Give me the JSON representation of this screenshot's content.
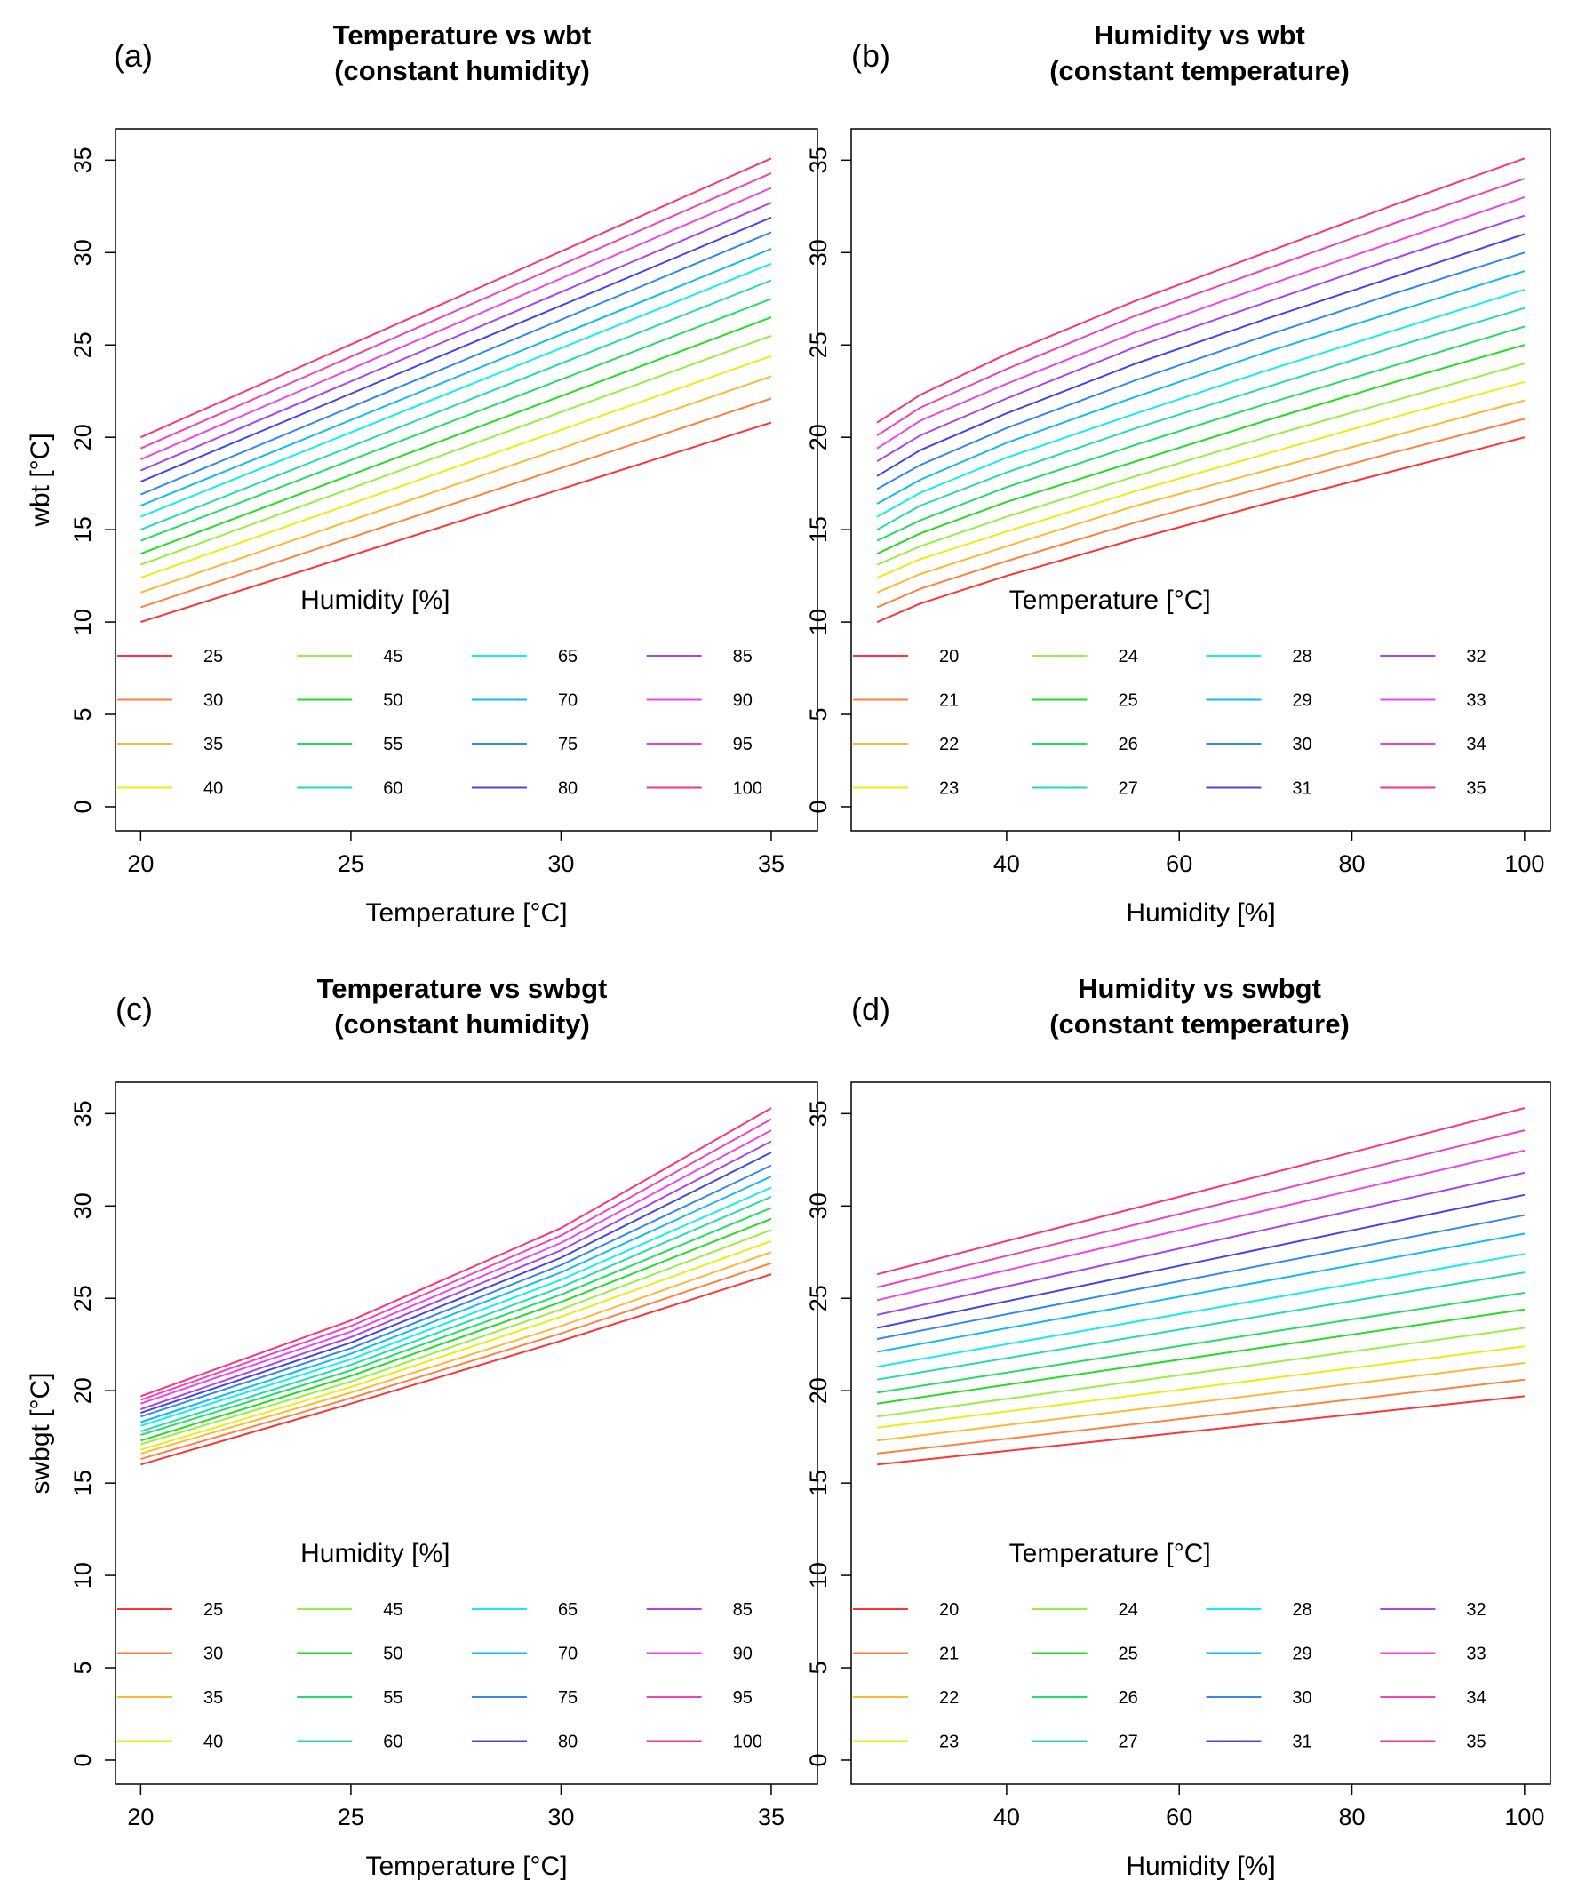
{
  "chart_data": [
    {
      "type": "line",
      "panel_tag": "(a)",
      "title_lines": [
        "Temperature vs wbt",
        "(constant humidity)"
      ],
      "xlabel": "Temperature [°C]",
      "ylabel": "wbt [°C]",
      "xlim": [
        19.4,
        36.1
      ],
      "ylim": [
        -1.3,
        36.7
      ],
      "xticks": [
        20,
        25,
        30,
        35
      ],
      "yticks": [
        0,
        5,
        10,
        15,
        20,
        25,
        30,
        35
      ],
      "x": [
        20,
        35
      ],
      "legend_title": "Humidity [%]",
      "series": [
        {
          "name": "25",
          "color": "#ff3333",
          "values": [
            10.0,
            20.8
          ]
        },
        {
          "name": "30",
          "color": "#ff8040",
          "values": [
            10.8,
            22.1
          ]
        },
        {
          "name": "35",
          "color": "#ffb833",
          "values": [
            11.6,
            23.3
          ]
        },
        {
          "name": "40",
          "color": "#e8ee10",
          "values": [
            12.4,
            24.4
          ]
        },
        {
          "name": "45",
          "color": "#99ee44",
          "values": [
            13.1,
            25.5
          ]
        },
        {
          "name": "50",
          "color": "#22dd22",
          "values": [
            13.7,
            26.5
          ]
        },
        {
          "name": "55",
          "color": "#22dd66",
          "values": [
            14.4,
            27.5
          ]
        },
        {
          "name": "60",
          "color": "#22ddaa",
          "values": [
            15.0,
            28.5
          ]
        },
        {
          "name": "65",
          "color": "#11eeee",
          "values": [
            15.7,
            29.4
          ]
        },
        {
          "name": "70",
          "color": "#11bbee",
          "values": [
            16.3,
            30.2
          ]
        },
        {
          "name": "75",
          "color": "#3388ee",
          "values": [
            16.9,
            31.1
          ]
        },
        {
          "name": "80",
          "color": "#4444ee",
          "values": [
            17.6,
            31.9
          ]
        },
        {
          "name": "85",
          "color": "#aa44ee",
          "values": [
            18.2,
            32.7
          ]
        },
        {
          "name": "90",
          "color": "#ee44ee",
          "values": [
            18.8,
            33.5
          ]
        },
        {
          "name": "95",
          "color": "#ee44bb",
          "values": [
            19.4,
            34.3
          ]
        },
        {
          "name": "100",
          "color": "#ff3377",
          "values": [
            20.0,
            35.1
          ]
        }
      ]
    },
    {
      "type": "line",
      "panel_tag": "(b)",
      "title_lines": [
        "Humidity vs wbt",
        "(constant temperature)"
      ],
      "xlabel": "Humidity [%]",
      "ylabel": "",
      "xlim": [
        22,
        103
      ],
      "ylim": [
        -1.3,
        36.7
      ],
      "xticks": [
        40,
        60,
        80,
        100
      ],
      "yticks": [
        0,
        5,
        10,
        15,
        20,
        25,
        30,
        35
      ],
      "x": [
        25,
        30,
        40,
        55,
        70,
        85,
        100
      ],
      "legend_title": "Temperature [°C]",
      "series": [
        {
          "name": "20",
          "color": "#ff3333",
          "values": [
            10.0,
            11.0,
            12.5,
            14.5,
            16.4,
            18.2,
            20.0
          ]
        },
        {
          "name": "21",
          "color": "#ff8040",
          "values": [
            10.8,
            11.8,
            13.3,
            15.4,
            17.3,
            19.2,
            21.0
          ]
        },
        {
          "name": "22",
          "color": "#ffb833",
          "values": [
            11.6,
            12.6,
            14.1,
            16.3,
            18.2,
            20.1,
            22.0
          ]
        },
        {
          "name": "23",
          "color": "#e8ee10",
          "values": [
            12.4,
            13.4,
            14.9,
            17.1,
            19.1,
            21.1,
            23.0
          ]
        },
        {
          "name": "24",
          "color": "#99ee44",
          "values": [
            13.1,
            14.1,
            15.7,
            17.9,
            20.0,
            22.0,
            24.0
          ]
        },
        {
          "name": "25",
          "color": "#22dd22",
          "values": [
            13.7,
            14.8,
            16.5,
            18.7,
            20.9,
            23.0,
            25.0
          ]
        },
        {
          "name": "26",
          "color": "#22dd66",
          "values": [
            14.4,
            15.5,
            17.3,
            19.6,
            21.8,
            23.9,
            26.0
          ]
        },
        {
          "name": "27",
          "color": "#22ddaa",
          "values": [
            15.0,
            16.3,
            18.1,
            20.5,
            22.7,
            24.9,
            27.0
          ]
        },
        {
          "name": "28",
          "color": "#11eeee",
          "values": [
            15.7,
            17.0,
            18.9,
            21.3,
            23.6,
            25.8,
            28.0
          ]
        },
        {
          "name": "29",
          "color": "#11bbee",
          "values": [
            16.4,
            17.7,
            19.7,
            22.2,
            24.6,
            26.8,
            29.0
          ]
        },
        {
          "name": "30",
          "color": "#3388ee",
          "values": [
            17.2,
            18.5,
            20.5,
            23.1,
            25.5,
            27.8,
            30.0
          ]
        },
        {
          "name": "31",
          "color": "#4444ee",
          "values": [
            17.9,
            19.3,
            21.3,
            24.0,
            26.4,
            28.7,
            31.0
          ]
        },
        {
          "name": "32",
          "color": "#aa44ee",
          "values": [
            18.7,
            20.1,
            22.1,
            24.9,
            27.3,
            29.7,
            32.0
          ]
        },
        {
          "name": "33",
          "color": "#ee44ee",
          "values": [
            19.4,
            20.9,
            22.9,
            25.7,
            28.2,
            30.6,
            33.0
          ]
        },
        {
          "name": "34",
          "color": "#ee44bb",
          "values": [
            20.1,
            21.6,
            23.7,
            26.6,
            29.1,
            31.6,
            34.0
          ]
        },
        {
          "name": "35",
          "color": "#ff3377",
          "values": [
            20.8,
            22.3,
            24.5,
            27.4,
            30.0,
            32.6,
            35.1
          ]
        }
      ]
    },
    {
      "type": "line",
      "panel_tag": "(c)",
      "title_lines": [
        "Temperature vs swbgt",
        "(constant humidity)"
      ],
      "xlabel": "Temperature [°C]",
      "ylabel": "swbgt [°C]",
      "xlim": [
        19.4,
        36.1
      ],
      "ylim": [
        -1.3,
        36.7
      ],
      "xticks": [
        20,
        25,
        30,
        35
      ],
      "yticks": [
        0,
        5,
        10,
        15,
        20,
        25,
        30,
        35
      ],
      "x": [
        20,
        25,
        30,
        35
      ],
      "legend_title": "Humidity [%]",
      "series": [
        {
          "name": "25",
          "color": "#ff3333",
          "values": [
            16.0,
            19.3,
            22.7,
            26.3
          ]
        },
        {
          "name": "30",
          "color": "#ff8040",
          "values": [
            16.3,
            19.6,
            23.1,
            26.9
          ]
        },
        {
          "name": "35",
          "color": "#ffb833",
          "values": [
            16.6,
            19.9,
            23.5,
            27.5
          ]
        },
        {
          "name": "40",
          "color": "#e8ee10",
          "values": [
            16.8,
            20.2,
            24.0,
            28.1
          ]
        },
        {
          "name": "45",
          "color": "#99ee44",
          "values": [
            17.1,
            20.5,
            24.4,
            28.7
          ]
        },
        {
          "name": "50",
          "color": "#22dd22",
          "values": [
            17.3,
            20.8,
            24.8,
            29.3
          ]
        },
        {
          "name": "55",
          "color": "#22dd66",
          "values": [
            17.6,
            21.1,
            25.2,
            29.9
          ]
        },
        {
          "name": "60",
          "color": "#22ddaa",
          "values": [
            17.8,
            21.4,
            25.6,
            30.5
          ]
        },
        {
          "name": "65",
          "color": "#11eeee",
          "values": [
            18.1,
            21.7,
            26.0,
            31.0
          ]
        },
        {
          "name": "70",
          "color": "#11bbee",
          "values": [
            18.3,
            22.0,
            26.4,
            31.6
          ]
        },
        {
          "name": "75",
          "color": "#3388ee",
          "values": [
            18.6,
            22.3,
            26.8,
            32.2
          ]
        },
        {
          "name": "80",
          "color": "#4444ee",
          "values": [
            18.8,
            22.6,
            27.2,
            32.9
          ]
        },
        {
          "name": "85",
          "color": "#aa44ee",
          "values": [
            19.0,
            22.9,
            27.6,
            33.5
          ]
        },
        {
          "name": "90",
          "color": "#ee44ee",
          "values": [
            19.3,
            23.2,
            28.0,
            34.1
          ]
        },
        {
          "name": "95",
          "color": "#ee44bb",
          "values": [
            19.5,
            23.5,
            28.4,
            34.7
          ]
        },
        {
          "name": "100",
          "color": "#ff3377",
          "values": [
            19.7,
            23.8,
            28.8,
            35.3
          ]
        }
      ]
    },
    {
      "type": "line",
      "panel_tag": "(d)",
      "title_lines": [
        "Humidity vs swbgt",
        "(constant temperature)"
      ],
      "xlabel": "Humidity [%]",
      "ylabel": "",
      "xlim": [
        22,
        103
      ],
      "ylim": [
        -1.3,
        36.7
      ],
      "xticks": [
        40,
        60,
        80,
        100
      ],
      "yticks": [
        0,
        5,
        10,
        15,
        20,
        25,
        30,
        35
      ],
      "x": [
        25,
        100
      ],
      "legend_title": "Temperature [°C]",
      "series": [
        {
          "name": "20",
          "color": "#ff3333",
          "values": [
            16.0,
            19.7
          ]
        },
        {
          "name": "21",
          "color": "#ff8040",
          "values": [
            16.6,
            20.6
          ]
        },
        {
          "name": "22",
          "color": "#ffb833",
          "values": [
            17.3,
            21.5
          ]
        },
        {
          "name": "23",
          "color": "#e8ee10",
          "values": [
            18.0,
            22.4
          ]
        },
        {
          "name": "24",
          "color": "#99ee44",
          "values": [
            18.6,
            23.4
          ]
        },
        {
          "name": "25",
          "color": "#22dd22",
          "values": [
            19.3,
            24.4
          ]
        },
        {
          "name": "26",
          "color": "#22dd66",
          "values": [
            19.9,
            25.3
          ]
        },
        {
          "name": "27",
          "color": "#22ddaa",
          "values": [
            20.6,
            26.4
          ]
        },
        {
          "name": "28",
          "color": "#11eeee",
          "values": [
            21.3,
            27.4
          ]
        },
        {
          "name": "29",
          "color": "#11bbee",
          "values": [
            22.1,
            28.5
          ]
        },
        {
          "name": "30",
          "color": "#3388ee",
          "values": [
            22.8,
            29.5
          ]
        },
        {
          "name": "31",
          "color": "#4444ee",
          "values": [
            23.4,
            30.6
          ]
        },
        {
          "name": "32",
          "color": "#aa44ee",
          "values": [
            24.1,
            31.8
          ]
        },
        {
          "name": "33",
          "color": "#ee44ee",
          "values": [
            24.9,
            33.0
          ]
        },
        {
          "name": "34",
          "color": "#ee44bb",
          "values": [
            25.6,
            34.1
          ]
        },
        {
          "name": "35",
          "color": "#ff3377",
          "values": [
            26.3,
            35.3
          ]
        }
      ]
    }
  ]
}
